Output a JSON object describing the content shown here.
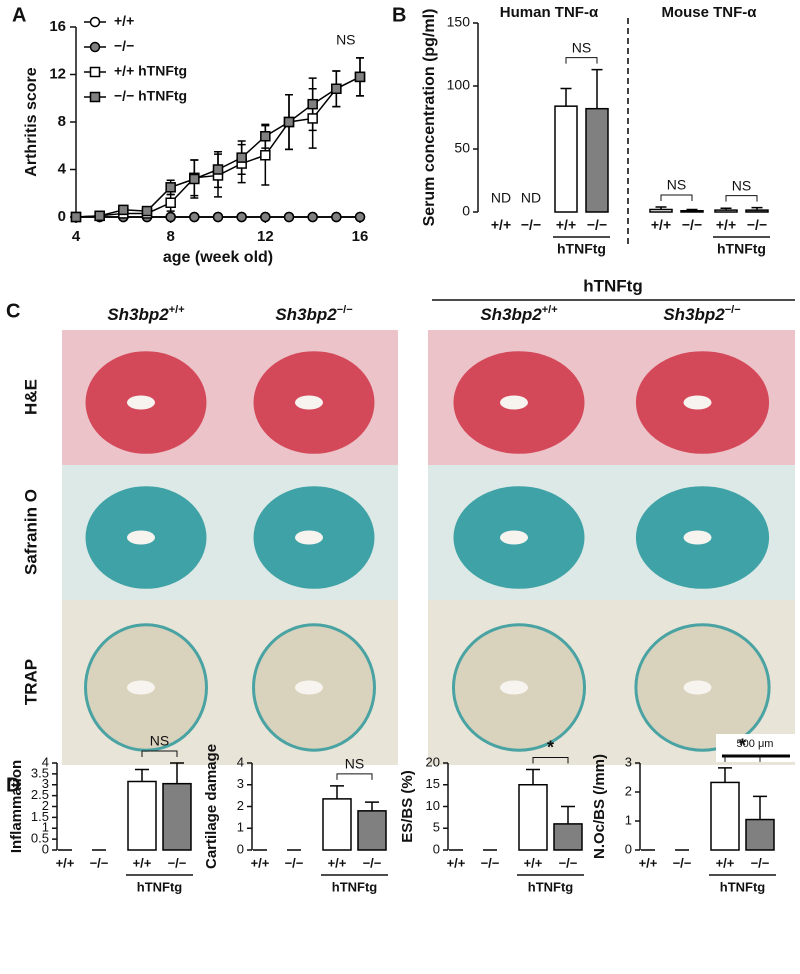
{
  "panels": [
    "A",
    "B",
    "C",
    "D"
  ],
  "chart_data": [
    {
      "type": "line",
      "ylabel": "Arthritis score",
      "xlabel": "age (week old)",
      "x": [
        4,
        5,
        6,
        7,
        8,
        9,
        10,
        11,
        12,
        13,
        14,
        15,
        16
      ],
      "xlim": [
        4,
        16
      ],
      "xticks": [
        4,
        8,
        12,
        16
      ],
      "ylim": [
        0,
        16
      ],
      "yticks": [
        0,
        4,
        8,
        12,
        16
      ],
      "annotation": "NS",
      "series": [
        {
          "name": "+/+",
          "marker": "circle",
          "color": "#ffffff",
          "values": [
            0,
            0,
            0,
            0,
            0,
            0,
            0,
            0,
            0,
            0,
            0,
            0,
            0
          ]
        },
        {
          "name": "−/−",
          "marker": "circle",
          "color": "#808080",
          "values": [
            0,
            0,
            0,
            0,
            0,
            0,
            0,
            0,
            0,
            0,
            0,
            0,
            0
          ]
        },
        {
          "name": "+/+ hTNFtg",
          "marker": "square",
          "color": "#ffffff",
          "values": [
            0,
            0.1,
            0.3,
            0.3,
            1.2,
            3.3,
            3.5,
            4.5,
            5.2,
            8,
            8.3,
            10.8,
            11.8
          ],
          "errors": [
            0,
            0.1,
            0.3,
            0.3,
            0.7,
            1.5,
            1.8,
            1.6,
            2.5,
            2.3,
            2.5,
            1.5,
            1.6
          ]
        },
        {
          "name": "−/− hTNFtg",
          "marker": "square",
          "color": "#808080",
          "values": [
            0,
            0.1,
            0.6,
            0.5,
            2.5,
            3.2,
            4,
            5,
            6.8,
            8,
            9.5,
            10.8,
            11.8
          ],
          "errors": [
            0,
            0.1,
            0.2,
            0.2,
            0.6,
            1.6,
            1.5,
            1.4,
            1,
            2.3,
            2.2,
            1.5,
            1.6
          ]
        }
      ]
    },
    {
      "type": "bar",
      "ylabel": "Serum concentration (pg/ml)",
      "ylim": [
        0,
        150
      ],
      "yticks": [
        0,
        50,
        100,
        150
      ],
      "subgroup_label": "hTNFtg",
      "groups": [
        {
          "title": "Human TNF-α",
          "categories": [
            "+/+",
            "−/−",
            "+/+",
            "−/−"
          ],
          "values": [
            null,
            null,
            84,
            82
          ],
          "errors": [
            null,
            null,
            14,
            31
          ],
          "value_labels": [
            "ND",
            "ND",
            null,
            null
          ],
          "colors": [
            "#ffffff",
            "#808080",
            "#ffffff",
            "#808080"
          ],
          "comparisons": [
            "NS"
          ]
        },
        {
          "title": "Mouse TNF-α",
          "categories": [
            "+/+",
            "−/−",
            "+/+",
            "−/−"
          ],
          "values": [
            2,
            1,
            1.5,
            1.5
          ],
          "errors": [
            2,
            1,
            1.5,
            2
          ],
          "colors": [
            "#ffffff",
            "#808080",
            "#ffffff",
            "#808080"
          ],
          "comparisons": [
            "NS",
            "NS"
          ]
        }
      ]
    },
    {
      "type": "bar",
      "ylabel": "Inflammation",
      "ylim": [
        0,
        4
      ],
      "yticks": [
        0,
        0.5,
        1,
        1.5,
        2,
        2.5,
        3,
        3.5,
        4
      ],
      "subgroup_label": "hTNFtg",
      "groups": [
        {
          "categories": [
            "+/+",
            "−/−",
            "+/+",
            "−/−"
          ],
          "values": [
            0,
            0,
            3.15,
            3.05
          ],
          "errors": [
            0,
            0,
            0.55,
            0.95
          ],
          "colors": [
            "#ffffff",
            "#808080",
            "#ffffff",
            "#808080"
          ],
          "comparisons": [
            "NS"
          ]
        }
      ]
    },
    {
      "type": "bar",
      "ylabel": "Cartilage damage",
      "ylim": [
        0,
        4
      ],
      "yticks": [
        0,
        1,
        2,
        3,
        4
      ],
      "subgroup_label": "hTNFtg",
      "groups": [
        {
          "categories": [
            "+/+",
            "−/−",
            "+/+",
            "−/−"
          ],
          "values": [
            0,
            0,
            2.35,
            1.8
          ],
          "errors": [
            0,
            0,
            0.6,
            0.4
          ],
          "colors": [
            "#ffffff",
            "#808080",
            "#ffffff",
            "#808080"
          ],
          "comparisons": [
            "NS"
          ]
        }
      ]
    },
    {
      "type": "bar",
      "ylabel": "ES/BS (%)",
      "ylim": [
        0,
        20
      ],
      "yticks": [
        0,
        5,
        10,
        15,
        20
      ],
      "subgroup_label": "hTNFtg",
      "groups": [
        {
          "categories": [
            "+/+",
            "−/−",
            "+/+",
            "−/−"
          ],
          "values": [
            0,
            0,
            15,
            6
          ],
          "errors": [
            0,
            0,
            3.5,
            4
          ],
          "colors": [
            "#ffffff",
            "#808080",
            "#ffffff",
            "#808080"
          ],
          "comparisons": [
            "*"
          ]
        }
      ]
    },
    {
      "type": "bar",
      "ylabel": "N.Oc/BS (/mm)",
      "ylim": [
        0,
        3
      ],
      "yticks": [
        0,
        1,
        2,
        3
      ],
      "subgroup_label": "hTNFtg",
      "groups": [
        {
          "categories": [
            "+/+",
            "−/−",
            "+/+",
            "−/−"
          ],
          "values": [
            0,
            0,
            2.33,
            1.05
          ],
          "errors": [
            0,
            0,
            0.5,
            0.8
          ],
          "colors": [
            "#ffffff",
            "#808080",
            "#ffffff",
            "#808080"
          ],
          "comparisons": [
            "*"
          ]
        }
      ]
    }
  ],
  "histology": {
    "group_label": "hTNFtg",
    "gene": "Sh3bp2",
    "columns": [
      "+/+",
      "−/−",
      "+/+",
      "−/−"
    ],
    "rows": [
      "H&E",
      "Safranin O",
      "TRAP"
    ],
    "scale_bar": "500 μm"
  }
}
